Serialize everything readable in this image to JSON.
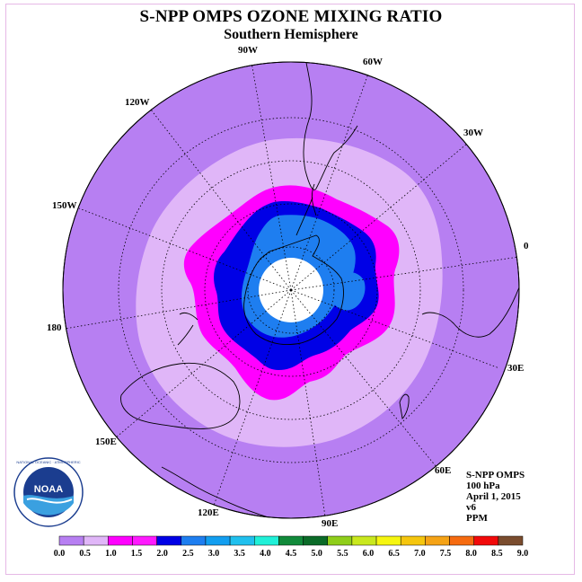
{
  "header": {
    "title": "S-NPP OMPS OZONE MIXING RATIO",
    "subtitle": "Southern Hemisphere"
  },
  "longitude_labels": [
    "90W",
    "60W",
    "30W",
    "120W",
    "150W",
    "0",
    "180",
    "30E",
    "150E",
    "60E",
    "120E",
    "90E"
  ],
  "info": {
    "instrument": "S-NPP OMPS",
    "level": "100 hPa",
    "date": "April 1, 2015",
    "version": "v6",
    "units": "PPM"
  },
  "logo": {
    "name": "NOAA",
    "ring_text": "NATIONAL OCEANIC AND ATMOSPHERIC ADMINISTRATION · U.S. DEPARTMENT OF COMMERCE"
  },
  "colorbar": {
    "ticks": [
      "0.0",
      "0.5",
      "1.0",
      "1.5",
      "2.0",
      "2.5",
      "3.0",
      "3.5",
      "4.0",
      "4.5",
      "5.0",
      "5.5",
      "6.0",
      "6.5",
      "7.0",
      "7.5",
      "8.0",
      "8.5",
      "9.0"
    ],
    "colors": [
      "#b77ff2",
      "#e0b6f8",
      "#ff00ff",
      "#ff1aff",
      "#0000e6",
      "#1e7ef0",
      "#129ef0",
      "#20c0ee",
      "#20f0d8",
      "#118a3a",
      "#0b6b28",
      "#8fce1a",
      "#c9e81e",
      "#f6f610",
      "#f5c60e",
      "#f5a316",
      "#f66b10",
      "#f20a0a",
      "#7a4c2e"
    ]
  },
  "map_colors": {
    "ocean_background": "#b77ff2",
    "band_0_5": "#e0b6f8",
    "band_1_0": "#ff00ff",
    "band_2_0": "#0000e6",
    "band_2_5": "#1e7ef0",
    "polar_gap": "#ffffff"
  }
}
